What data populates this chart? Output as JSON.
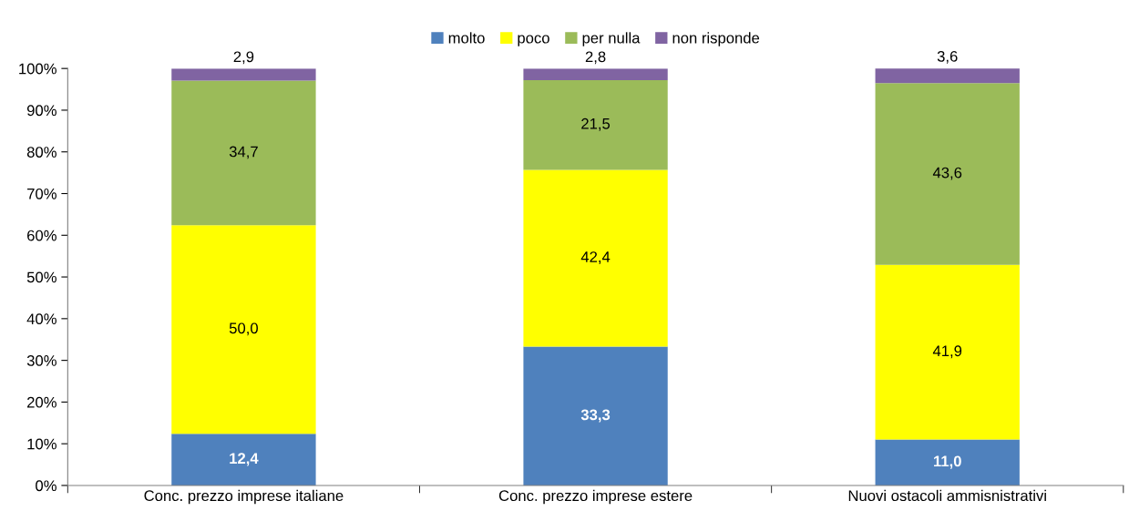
{
  "chart_data": {
    "type": "bar",
    "stacked": true,
    "legend": "top",
    "grid": false,
    "categories": [
      "Conc. prezzo imprese italiane",
      "Conc. prezzo imprese estere",
      "Nuovi ostacoli ammisnistrativi"
    ],
    "series": [
      {
        "name": "molto",
        "color": "#4f81bd",
        "values": [
          12.4,
          33.3,
          11.0
        ],
        "value_labels": [
          "12,4",
          "33,3",
          "11,0"
        ]
      },
      {
        "name": "poco",
        "color": "#ffff00",
        "values": [
          50.0,
          42.4,
          41.9
        ],
        "value_labels": [
          "50,0",
          "42,4",
          "41,9"
        ]
      },
      {
        "name": "per nulla",
        "color": "#9bbb59",
        "values": [
          34.7,
          21.5,
          43.6
        ],
        "value_labels": [
          "34,7",
          "21,5",
          "43,6"
        ]
      },
      {
        "name": "non risponde",
        "color": "#8064a2",
        "values": [
          2.9,
          2.8,
          3.6
        ],
        "value_labels": [
          "2,9",
          "2,8",
          "3,6"
        ]
      }
    ],
    "ylim": [
      0,
      100
    ],
    "yticks": [
      {
        "value": 0,
        "label": "0%"
      },
      {
        "value": 10,
        "label": "10%"
      },
      {
        "value": 20,
        "label": "20%"
      },
      {
        "value": 30,
        "label": "30%"
      },
      {
        "value": 40,
        "label": "40%"
      },
      {
        "value": 50,
        "label": "50%"
      },
      {
        "value": 60,
        "label": "60%"
      },
      {
        "value": 70,
        "label": "70%"
      },
      {
        "value": 80,
        "label": "80%"
      },
      {
        "value": 90,
        "label": "90%"
      },
      {
        "value": 100,
        "label": "100%"
      }
    ]
  }
}
